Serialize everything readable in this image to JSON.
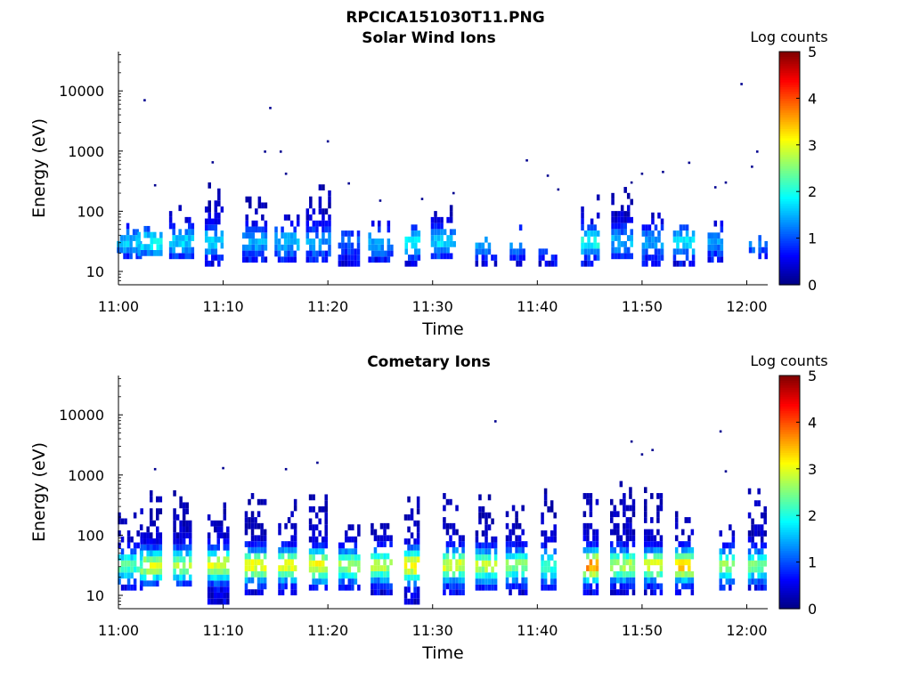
{
  "figure_title": "RPCICA151030T11.PNG",
  "chart_data": [
    {
      "type": "heatmap",
      "title": "Solar Wind Ions",
      "xlabel": "Time",
      "ylabel": "Energy (eV)",
      "y_scale": "log",
      "ylim": [
        6,
        45000
      ],
      "y_ticks": [
        10,
        100,
        1000,
        10000
      ],
      "y_tick_labels": [
        "10",
        "100",
        "1000",
        "10000"
      ],
      "xlim": [
        "11:00",
        "12:02"
      ],
      "x_ticks": [
        "11:00",
        "11:10",
        "11:20",
        "11:30",
        "11:40",
        "11:50",
        "12:00"
      ],
      "colorbar": {
        "label": "Log counts",
        "range": [
          0,
          5
        ],
        "ticks": [
          "0",
          "1",
          "2",
          "3",
          "4",
          "5"
        ],
        "colormap": "jet"
      },
      "bursts": [
        {
          "t": "11:01",
          "emin": 16,
          "emax": 80,
          "peak": 1.5
        },
        {
          "t": "11:03",
          "emin": 18,
          "emax": 65,
          "peak": 1.8
        },
        {
          "t": "11:06",
          "emin": 16,
          "emax": 110,
          "peak": 1.6
        },
        {
          "t": "11:09",
          "emin": 12,
          "emax": 300,
          "peak": 1.6
        },
        {
          "t": "11:13",
          "emin": 14,
          "emax": 170,
          "peak": 1.4
        },
        {
          "t": "11:16",
          "emin": 14,
          "emax": 110,
          "peak": 1.5
        },
        {
          "t": "11:19",
          "emin": 14,
          "emax": 300,
          "peak": 1.3
        },
        {
          "t": "11:22",
          "emin": 12,
          "emax": 50,
          "peak": 1.1
        },
        {
          "t": "11:25",
          "emin": 14,
          "emax": 70,
          "peak": 1.4
        },
        {
          "t": "11:28",
          "emin": 12,
          "emax": 75,
          "peak": 1.7
        },
        {
          "t": "11:31",
          "emin": 16,
          "emax": 110,
          "peak": 1.6
        },
        {
          "t": "11:35",
          "emin": 12,
          "emax": 40,
          "peak": 1.5
        },
        {
          "t": "11:38",
          "emin": 12,
          "emax": 55,
          "peak": 1.4
        },
        {
          "t": "11:41",
          "emin": 12,
          "emax": 40,
          "peak": 1.3
        },
        {
          "t": "11:45",
          "emin": 12,
          "emax": 200,
          "peak": 1.9
        },
        {
          "t": "11:48",
          "emin": 16,
          "emax": 300,
          "peak": 1.4
        },
        {
          "t": "11:51",
          "emin": 12,
          "emax": 120,
          "peak": 1.4
        },
        {
          "t": "11:54",
          "emin": 12,
          "emax": 120,
          "peak": 1.7
        },
        {
          "t": "11:57",
          "emin": 14,
          "emax": 90,
          "peak": 1.3
        },
        {
          "t": "12:01",
          "emin": 16,
          "emax": 40,
          "peak": 1.2
        }
      ],
      "isolated_points": [
        {
          "t": "11:02.5",
          "e": 7000
        },
        {
          "t": "11:03.5",
          "e": 270
        },
        {
          "t": "11:09",
          "e": 650
        },
        {
          "t": "11:14.5",
          "e": 5200
        },
        {
          "t": "11:14",
          "e": 980
        },
        {
          "t": "11:15.5",
          "e": 980
        },
        {
          "t": "11:16",
          "e": 420
        },
        {
          "t": "11:20",
          "e": 1450
        },
        {
          "t": "11:22",
          "e": 290
        },
        {
          "t": "11:25",
          "e": 150
        },
        {
          "t": "11:29",
          "e": 160
        },
        {
          "t": "11:32",
          "e": 200
        },
        {
          "t": "11:39",
          "e": 700
        },
        {
          "t": "11:41",
          "e": 390
        },
        {
          "t": "11:42",
          "e": 230
        },
        {
          "t": "11:49",
          "e": 300
        },
        {
          "t": "11:50",
          "e": 420
        },
        {
          "t": "11:52",
          "e": 450
        },
        {
          "t": "11:54.5",
          "e": 640
        },
        {
          "t": "11:57",
          "e": 250
        },
        {
          "t": "11:58",
          "e": 300
        },
        {
          "t": "11:59.5",
          "e": 13000
        },
        {
          "t": "12:00.5",
          "e": 550
        },
        {
          "t": "12:01",
          "e": 980
        }
      ]
    },
    {
      "type": "heatmap",
      "title": "Cometary Ions",
      "xlabel": "Time",
      "ylabel": "Energy (eV)",
      "y_scale": "log",
      "ylim": [
        6,
        45000
      ],
      "y_ticks": [
        10,
        100,
        1000,
        10000
      ],
      "y_tick_labels": [
        "10",
        "100",
        "1000",
        "10000"
      ],
      "xlim": [
        "11:00",
        "12:02"
      ],
      "x_ticks": [
        "11:00",
        "11:10",
        "11:20",
        "11:30",
        "11:40",
        "11:50",
        "12:00"
      ],
      "colorbar": {
        "label": "Log counts",
        "range": [
          0,
          5
        ],
        "ticks": [
          "0",
          "1",
          "2",
          "3",
          "4",
          "5"
        ],
        "colormap": "jet"
      },
      "bursts": [
        {
          "t": "11:01",
          "emin": 12,
          "emax": 200,
          "peak": 2.2
        },
        {
          "t": "11:03",
          "emin": 14,
          "emax": 600,
          "peak": 2.8
        },
        {
          "t": "11:06",
          "emin": 14,
          "emax": 600,
          "peak": 2.6
        },
        {
          "t": "11:09.5",
          "emin": 7,
          "emax": 400,
          "peak": 2.9
        },
        {
          "t": "11:13",
          "emin": 10,
          "emax": 450,
          "peak": 3.0
        },
        {
          "t": "11:16",
          "emin": 10,
          "emax": 400,
          "peak": 2.9
        },
        {
          "t": "11:19",
          "emin": 12,
          "emax": 500,
          "peak": 3.0
        },
        {
          "t": "11:22",
          "emin": 12,
          "emax": 200,
          "peak": 2.6
        },
        {
          "t": "11:25",
          "emin": 10,
          "emax": 180,
          "peak": 2.7
        },
        {
          "t": "11:28",
          "emin": 7,
          "emax": 450,
          "peak": 3.2
        },
        {
          "t": "11:32",
          "emin": 10,
          "emax": 450,
          "peak": 2.9
        },
        {
          "t": "11:35",
          "emin": 12,
          "emax": 450,
          "peak": 2.7
        },
        {
          "t": "11:38",
          "emin": 10,
          "emax": 350,
          "peak": 2.5
        },
        {
          "t": "11:41",
          "emin": 12,
          "emax": 600,
          "peak": 2.1
        },
        {
          "t": "11:45",
          "emin": 10,
          "emax": 800,
          "peak": 3.6
        },
        {
          "t": "11:48",
          "emin": 10,
          "emax": 700,
          "peak": 2.7
        },
        {
          "t": "11:51",
          "emin": 10,
          "emax": 600,
          "peak": 2.9
        },
        {
          "t": "11:54",
          "emin": 10,
          "emax": 350,
          "peak": 3.3
        },
        {
          "t": "11:58",
          "emin": 12,
          "emax": 250,
          "peak": 2.6
        },
        {
          "t": "12:01",
          "emin": 12,
          "emax": 800,
          "peak": 2.3
        }
      ],
      "isolated_points": [
        {
          "t": "11:03.5",
          "e": 1250
        },
        {
          "t": "11:10",
          "e": 1300
        },
        {
          "t": "11:16",
          "e": 1250
        },
        {
          "t": "11:19",
          "e": 1600
        },
        {
          "t": "11:36",
          "e": 7800
        },
        {
          "t": "11:49",
          "e": 3600
        },
        {
          "t": "11:50",
          "e": 2200
        },
        {
          "t": "11:51",
          "e": 2600
        },
        {
          "t": "11:57.5",
          "e": 5300
        },
        {
          "t": "11:58",
          "e": 1150
        }
      ]
    }
  ]
}
